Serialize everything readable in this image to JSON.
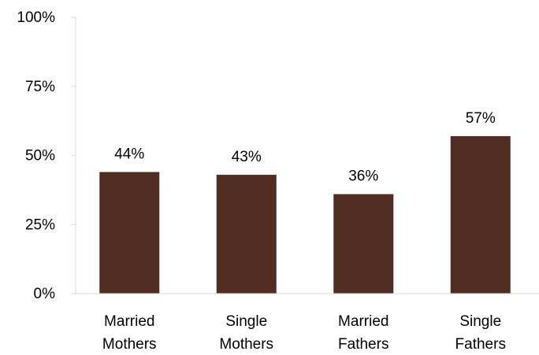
{
  "chart_data": {
    "type": "bar",
    "categories": [
      [
        "Married",
        "Mothers"
      ],
      [
        "Single",
        "Mothers"
      ],
      [
        "Married",
        "Fathers"
      ],
      [
        "Single",
        "Fathers"
      ]
    ],
    "values": [
      44,
      43,
      36,
      57
    ],
    "data_labels": [
      "44%",
      "43%",
      "36%",
      "57%"
    ],
    "ylim": [
      0,
      100
    ],
    "yticks": [
      0,
      25,
      50,
      75,
      100
    ],
    "ytick_labels": [
      "0%",
      "25%",
      "50%",
      "75%",
      "100%"
    ],
    "grid": false,
    "legend": "none",
    "bar_color": "#502D20",
    "axis_color": "#D9D9D9"
  }
}
